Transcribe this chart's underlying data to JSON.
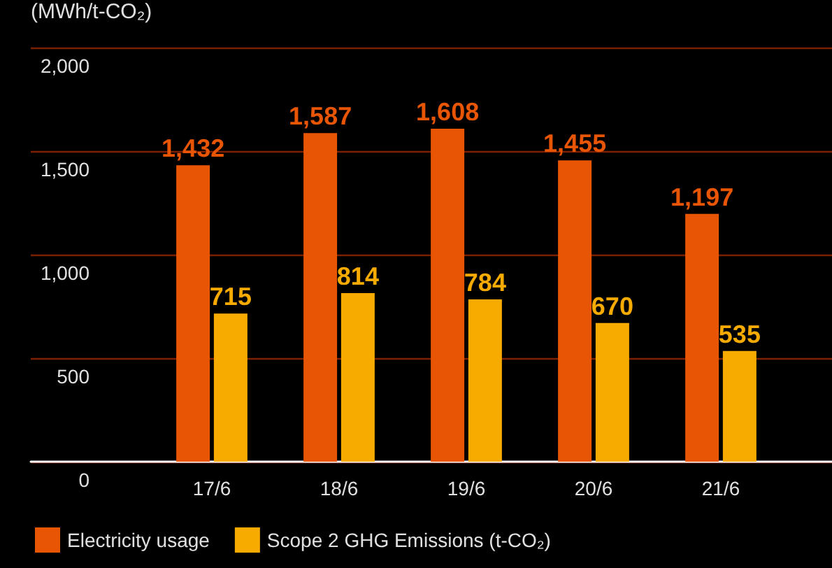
{
  "chart_data": {
    "type": "bar",
    "ylabel": "(MWh/t-CO₂)",
    "categories": [
      "17/6",
      "18/6",
      "19/6",
      "20/6",
      "21/6"
    ],
    "series": [
      {
        "name": "Electricity usage",
        "color": "#e85504",
        "values": [
          1432,
          1587,
          1608,
          1455,
          1197
        ],
        "value_labels": [
          "1,432",
          "1,587",
          "1,608",
          "1,455",
          "1,197"
        ]
      },
      {
        "name": "Scope 2 GHG Emissions (t-CO₂)",
        "color": "#f7ab00",
        "values": [
          715,
          814,
          784,
          670,
          535
        ],
        "value_labels": [
          "715",
          "814",
          "784",
          "670",
          "535"
        ]
      }
    ],
    "ylim": [
      0,
      2000
    ],
    "yticks": [
      0,
      500,
      {
        "value": 1000,
        "label": "1,000"
      },
      {
        "value": 1500,
        "label": "1,500"
      },
      {
        "value": 2000,
        "label": "2,000"
      }
    ],
    "grid": "y",
    "legend": "bottom left"
  }
}
